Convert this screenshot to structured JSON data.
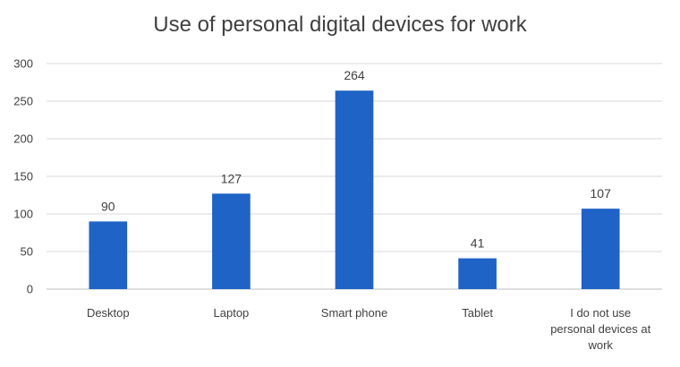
{
  "chart_data": {
    "type": "bar",
    "title": "Use of personal digital devices for work",
    "categories": [
      "Desktop",
      "Laptop",
      "Smart phone",
      "Tablet",
      "I do not use personal devices at work"
    ],
    "category_lines": [
      [
        "Desktop"
      ],
      [
        "Laptop"
      ],
      [
        "Smart phone"
      ],
      [
        "Tablet"
      ],
      [
        "I do not use",
        "personal devices at",
        "work"
      ]
    ],
    "values": [
      90,
      127,
      264,
      41,
      107
    ],
    "data_labels": [
      "90",
      "127",
      "264",
      "41",
      "107"
    ],
    "xlabel": "",
    "ylabel": "",
    "ylim": [
      0,
      300
    ],
    "yticks": [
      0,
      50,
      100,
      150,
      200,
      250,
      300
    ],
    "grid": true,
    "legend": "none",
    "bar_color": "#1f63c6"
  }
}
